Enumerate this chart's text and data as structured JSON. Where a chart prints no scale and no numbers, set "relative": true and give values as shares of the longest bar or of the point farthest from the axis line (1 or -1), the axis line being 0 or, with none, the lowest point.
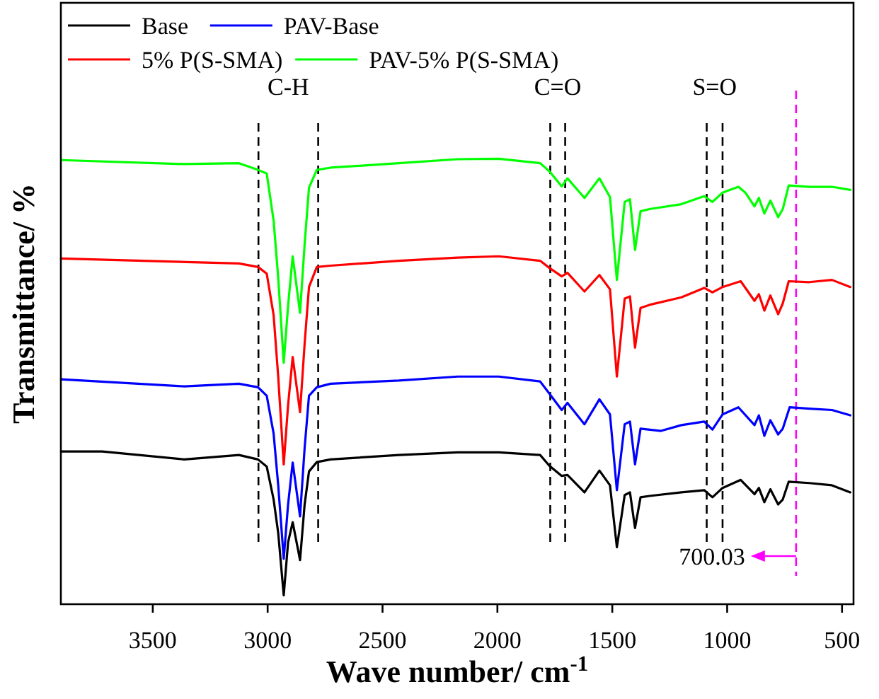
{
  "chart_data": {
    "type": "line",
    "relative": true,
    "xlabel": "Wave number/ cm$^{-1}$",
    "ylabel": "Transmittance/ %",
    "xlim": [
      3900,
      450
    ],
    "xticks": [
      3500,
      3000,
      2500,
      2000,
      1500,
      1000,
      500
    ],
    "legend": "top left",
    "grid": false,
    "line_style": "solid",
    "marker": "none",
    "series": [
      {
        "name": "Base",
        "color": "#000000",
        "x": [
          3899,
          3720,
          3363,
          3125,
          3042,
          3004,
          2974,
          2954,
          2930,
          2911,
          2891,
          2859,
          2839,
          2820,
          2786,
          2726,
          2429,
          2173,
          1994,
          1814,
          1774,
          1720,
          1695,
          1621,
          1556,
          1510,
          1480,
          1446,
          1423,
          1401,
          1377,
          1338,
          1199,
          1100,
          1064,
          1020,
          941,
          881,
          862,
          838,
          812,
          778,
          758,
          732,
          643,
          544,
          464
        ],
        "values": [
          0.343,
          0.343,
          0.325,
          0.335,
          0.325,
          0.309,
          0.235,
          0.16,
          0.02,
          0.139,
          0.184,
          0.099,
          0.224,
          0.298,
          0.319,
          0.325,
          0.335,
          0.341,
          0.341,
          0.335,
          0.311,
          0.288,
          0.29,
          0.251,
          0.3,
          0.267,
          0.128,
          0.245,
          0.251,
          0.171,
          0.24,
          0.243,
          0.251,
          0.256,
          0.24,
          0.261,
          0.279,
          0.247,
          0.261,
          0.229,
          0.258,
          0.224,
          0.235,
          0.275,
          0.272,
          0.267,
          0.251
        ]
      },
      {
        "name": "PAV-Base",
        "color": "#0000ff",
        "x": [
          3899,
          3363,
          3125,
          3042,
          3004,
          2974,
          2954,
          2930,
          2911,
          2891,
          2859,
          2839,
          2820,
          2786,
          2726,
          2429,
          2173,
          1994,
          1814,
          1774,
          1720,
          1695,
          1621,
          1556,
          1510,
          1480,
          1446,
          1423,
          1401,
          1377,
          1288,
          1199,
          1100,
          1064,
          1020,
          951,
          881,
          862,
          838,
          812,
          778,
          758,
          728,
          643,
          544,
          464
        ],
        "values": [
          0.505,
          0.489,
          0.495,
          0.487,
          0.468,
          0.383,
          0.267,
          0.102,
          0.224,
          0.318,
          0.197,
          0.351,
          0.468,
          0.487,
          0.495,
          0.502,
          0.511,
          0.511,
          0.5,
          0.473,
          0.436,
          0.452,
          0.404,
          0.46,
          0.426,
          0.256,
          0.404,
          0.41,
          0.314,
          0.394,
          0.389,
          0.402,
          0.41,
          0.392,
          0.426,
          0.442,
          0.402,
          0.424,
          0.378,
          0.413,
          0.381,
          0.394,
          0.442,
          0.439,
          0.436,
          0.424
        ]
      },
      {
        "name": "5% P(S-SMA)",
        "color": "#ff0000",
        "x": [
          3899,
          3125,
          3042,
          3004,
          2974,
          2954,
          2930,
          2911,
          2891,
          2859,
          2839,
          2820,
          2786,
          2726,
          2429,
          2173,
          1994,
          1814,
          1774,
          1720,
          1695,
          1621,
          1556,
          1510,
          1480,
          1446,
          1423,
          1401,
          1377,
          1338,
          1199,
          1100,
          1064,
          1020,
          941,
          881,
          862,
          838,
          812,
          778,
          758,
          732,
          643,
          544,
          464
        ],
        "values": [
          0.776,
          0.765,
          0.757,
          0.742,
          0.649,
          0.511,
          0.314,
          0.447,
          0.555,
          0.431,
          0.585,
          0.712,
          0.757,
          0.76,
          0.771,
          0.778,
          0.781,
          0.771,
          0.755,
          0.736,
          0.744,
          0.702,
          0.739,
          0.707,
          0.511,
          0.686,
          0.691,
          0.576,
          0.665,
          0.672,
          0.689,
          0.71,
          0.7,
          0.712,
          0.725,
          0.681,
          0.696,
          0.659,
          0.693,
          0.651,
          0.675,
          0.725,
          0.723,
          0.728,
          0.712
        ]
      },
      {
        "name": "PAV-5% P(S-SMA)",
        "color": "#00ff00",
        "x": [
          3899,
          3363,
          3125,
          3042,
          3004,
          2974,
          2954,
          2930,
          2911,
          2891,
          2859,
          2839,
          2820,
          2786,
          2726,
          2429,
          2173,
          1994,
          1814,
          1774,
          1720,
          1695,
          1621,
          1556,
          1510,
          1480,
          1446,
          1423,
          1401,
          1377,
          1338,
          1199,
          1100,
          1064,
          1020,
          951,
          921,
          881,
          862,
          838,
          812,
          778,
          758,
          732,
          643,
          544,
          464
        ],
        "values": [
          0.997,
          0.988,
          0.99,
          0.975,
          0.967,
          0.861,
          0.733,
          0.542,
          0.67,
          0.781,
          0.654,
          0.808,
          0.935,
          0.975,
          0.98,
          0.99,
          0.999,
          1,
          0.99,
          0.972,
          0.938,
          0.956,
          0.912,
          0.956,
          0.914,
          0.728,
          0.903,
          0.909,
          0.795,
          0.882,
          0.887,
          0.898,
          0.916,
          0.903,
          0.924,
          0.937,
          0.924,
          0.893,
          0.912,
          0.877,
          0.906,
          0.869,
          0.887,
          0.94,
          0.937,
          0.937,
          0.93
        ]
      }
    ],
    "ref_lines": [
      {
        "axis": "x",
        "value": 3040,
        "color": "#000000",
        "line_style": "dashed"
      },
      {
        "axis": "x",
        "value": 2780,
        "color": "#000000",
        "line_style": "dashed"
      },
      {
        "axis": "x",
        "value": 1770,
        "color": "#000000",
        "line_style": "dashed"
      },
      {
        "axis": "x",
        "value": 1705,
        "color": "#000000",
        "line_style": "dashed"
      },
      {
        "axis": "x",
        "value": 1089,
        "color": "#000000",
        "line_style": "dashed"
      },
      {
        "axis": "x",
        "value": 1020,
        "color": "#000000",
        "line_style": "dashed"
      },
      {
        "axis": "x",
        "value": 700.03,
        "label": "700.03",
        "color": "#ff00ff",
        "line_style": "dashed"
      }
    ],
    "annotations": [
      "C-H",
      "C=O",
      "S=O"
    ]
  }
}
